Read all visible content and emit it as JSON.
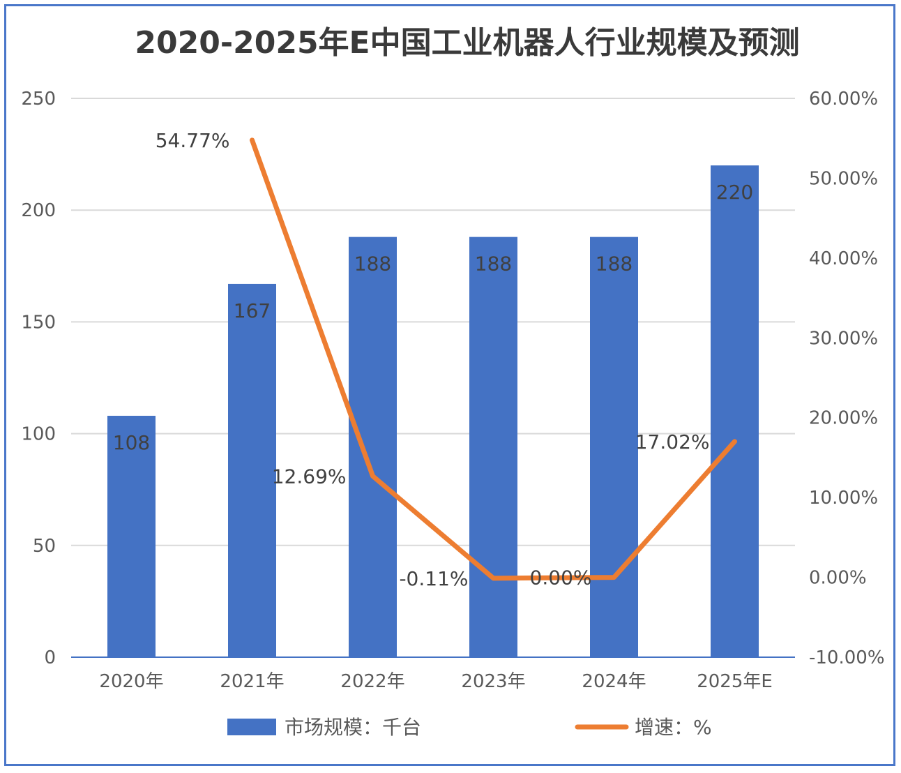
{
  "chart_data": {
    "type": "bar+line",
    "title": "2020-2025年E中国工业机器人行业规模及预测",
    "categories": [
      "2020年",
      "2021年",
      "2022年",
      "2023年",
      "2024年",
      "2025年E"
    ],
    "series": [
      {
        "name": "市场规模：千台",
        "type": "bar",
        "axis": "left",
        "color": "#4472c4",
        "values": [
          108,
          167,
          188,
          188,
          188,
          220
        ],
        "labels": [
          "108",
          "167",
          "188",
          "188",
          "188",
          "220"
        ]
      },
      {
        "name": "增速：%",
        "type": "line",
        "axis": "right",
        "color": "#ed7d31",
        "values": [
          null,
          54.77,
          12.69,
          -0.11,
          0.0,
          17.02
        ],
        "labels": [
          "",
          "54.77%",
          "12.69%",
          "-0.11%",
          "0.00%",
          "17.02%"
        ]
      }
    ],
    "left_axis": {
      "min": 0,
      "max": 250,
      "step": 50,
      "ticks": [
        "0",
        "50",
        "100",
        "150",
        "200",
        "250"
      ]
    },
    "right_axis": {
      "min": -10,
      "max": 60,
      "step": 10,
      "ticks": [
        "-10.00%",
        "0.00%",
        "10.00%",
        "20.00%",
        "30.00%",
        "40.00%",
        "50.00%",
        "60.00%"
      ]
    },
    "legend_position": "bottom",
    "grid": true
  }
}
